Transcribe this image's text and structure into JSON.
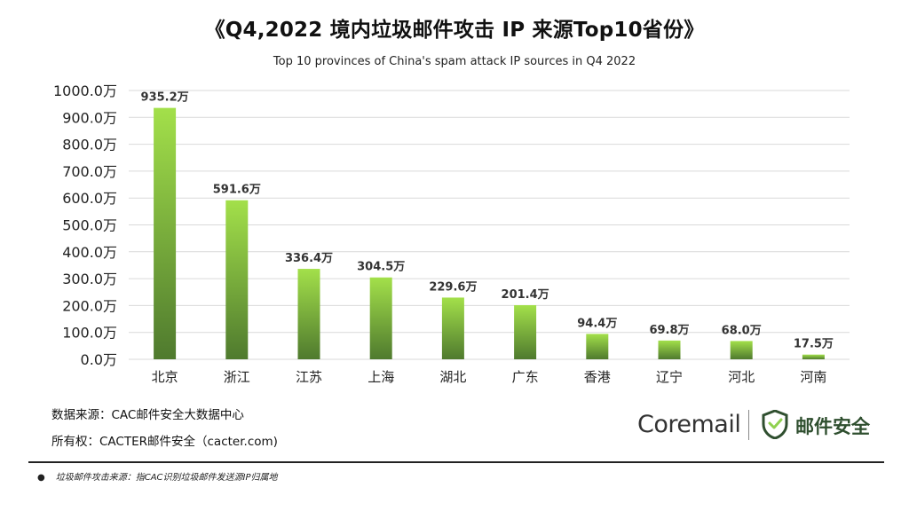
{
  "title": "《Q4,2022 境内垃圾邮件攻击 IP 来源Top10省份》",
  "footer": {
    "source": "数据来源：CAC邮件安全大数据中心",
    "copyright": "所有权：CACTER邮件安全（cacter.com)",
    "logo_brand": "Coremail",
    "logo_product": "邮件安全",
    "note": "垃圾邮件攻击来源：指CAC识别垃圾邮件发送源IP归属地"
  },
  "colors": {
    "bar_top": "#a3e04a",
    "bar_bottom": "#4f7a2e",
    "grid": "#d9d9d9",
    "logo_green": "#2f4f2f"
  },
  "chart_data": {
    "type": "bar",
    "title": "Top 10 provinces of China's spam attack IP sources in Q4 2022",
    "xlabel": "",
    "ylabel": "",
    "categories": [
      "北京",
      "浙江",
      "江苏",
      "上海",
      "湖北",
      "广东",
      "香港",
      "辽宁",
      "河北",
      "河南"
    ],
    "values": [
      935.2,
      591.6,
      336.4,
      304.5,
      229.6,
      201.4,
      94.4,
      69.8,
      68.0,
      17.5
    ],
    "value_labels": [
      "935.2万",
      "591.6万",
      "336.4万",
      "304.5万",
      "229.6万",
      "201.4万",
      "94.4万",
      "69.8万",
      "68.0万",
      "17.5万"
    ],
    "ylim": [
      0,
      1000
    ],
    "yticks": [
      0,
      100,
      200,
      300,
      400,
      500,
      600,
      700,
      800,
      900,
      1000
    ],
    "ytick_labels": [
      "0.0万",
      "100.0万",
      "200.0万",
      "300.0万",
      "400.0万",
      "500.0万",
      "600.0万",
      "700.0万",
      "800.0万",
      "900.0万",
      "1000.0万"
    ],
    "grid": true,
    "legend": "none"
  }
}
